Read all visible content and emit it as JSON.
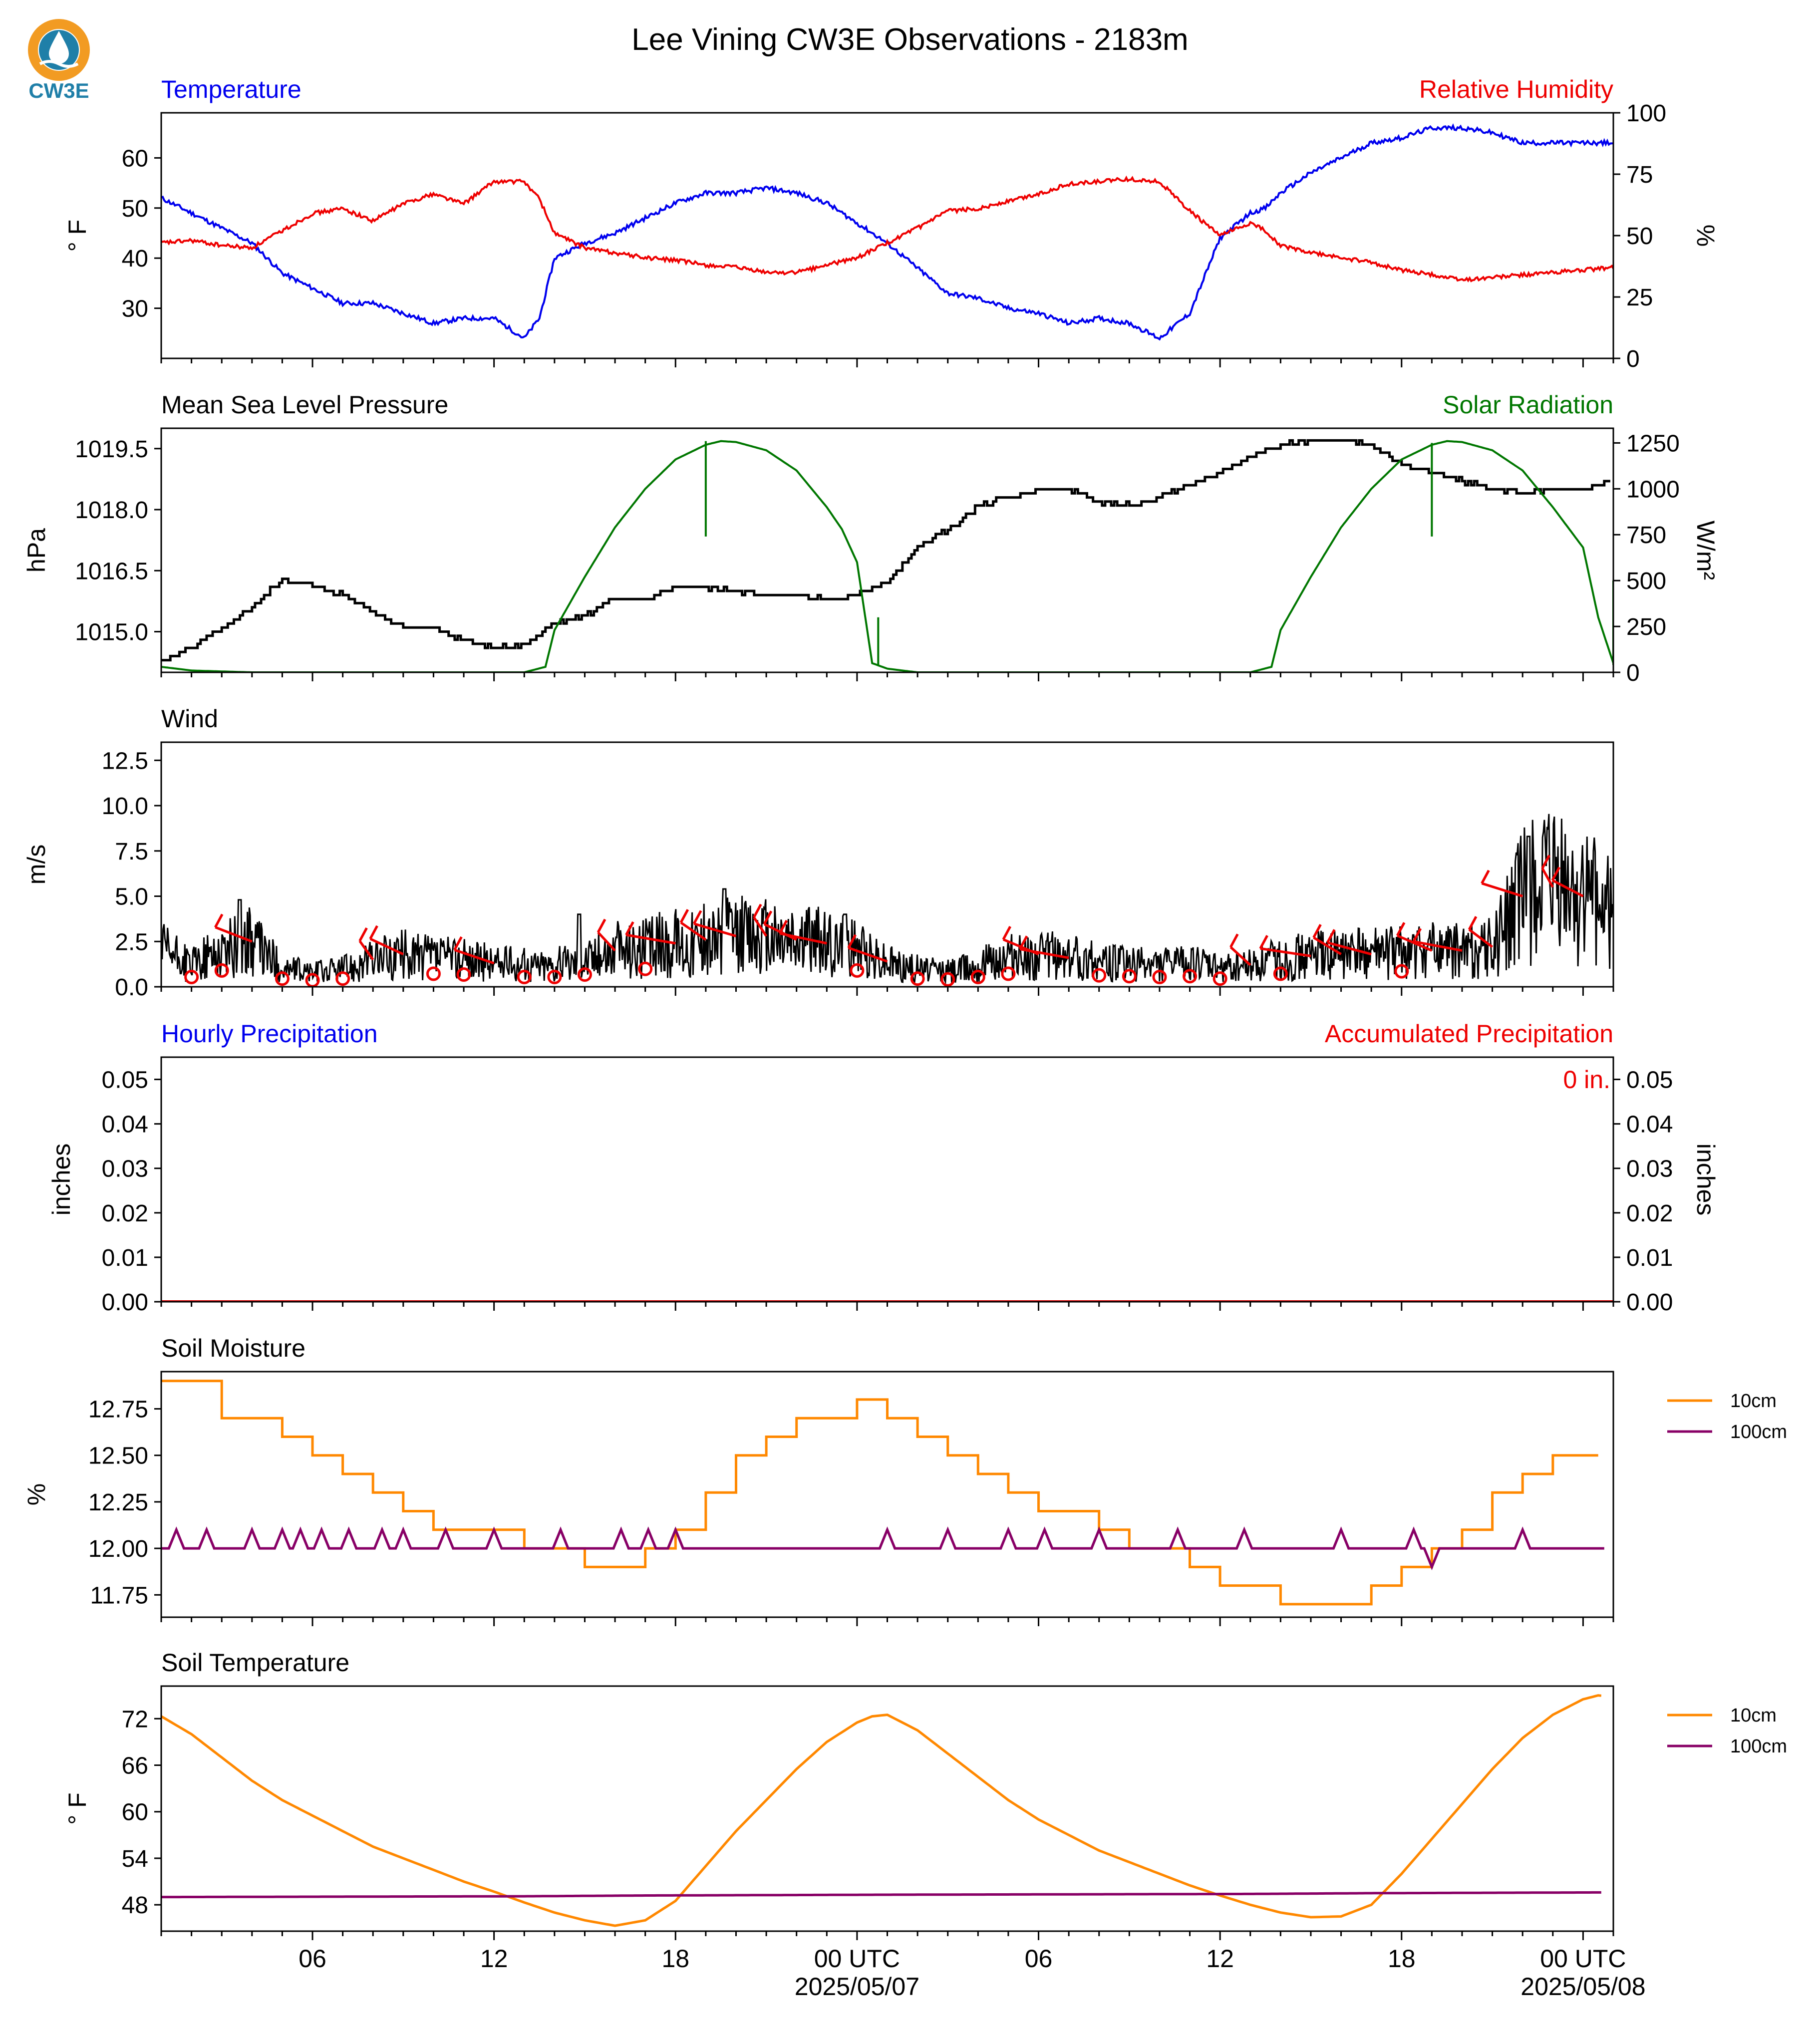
{
  "title": "Lee Vining CW3E Observations - 2183m",
  "logo": {
    "text": "CW3E",
    "colors": {
      "drop": "#1f7fa8",
      "ring": "#f29b22"
    }
  },
  "x_axis": {
    "tick_labels": [
      "06",
      "12",
      "18",
      "00 UTC",
      "06",
      "12",
      "18",
      "00 UTC"
    ],
    "tick_hours": [
      6,
      12,
      18,
      24,
      30,
      36,
      42,
      48
    ],
    "date_labels": [
      {
        "hour": 24,
        "text": "2025/05/07"
      },
      {
        "hour": 48,
        "text": "2025/05/08"
      }
    ],
    "range_hours": [
      1,
      49
    ]
  },
  "chart_data": [
    {
      "type": "line",
      "title_left": "Temperature",
      "title_right": "Relative Humidity",
      "ylabel_left": "° F",
      "ylabel_right": "%",
      "ylim_left": [
        20,
        69
      ],
      "ylim_right": [
        0,
        100
      ],
      "yticks_left": [
        30,
        40,
        50,
        60
      ],
      "yticks_right": [
        0,
        25,
        50,
        75,
        100
      ],
      "x": [
        1,
        2,
        3,
        4,
        5,
        6,
        7,
        8,
        9,
        10,
        11,
        12,
        13,
        13.5,
        14,
        15,
        16,
        17,
        18,
        19,
        20,
        21,
        22,
        23,
        24,
        25,
        26,
        27,
        28,
        29,
        30,
        31,
        32,
        33,
        34,
        35,
        36,
        37,
        37.5,
        38,
        39,
        40,
        41,
        42,
        43,
        44,
        45,
        46,
        47,
        48,
        49
      ],
      "series": [
        {
          "name": "Temperature",
          "axis": "left",
          "color": "#0000ee",
          "values": [
            52,
            49,
            46,
            43,
            37,
            34,
            31,
            31,
            29,
            27,
            28,
            28,
            24,
            28,
            40,
            43,
            45,
            48,
            51,
            53,
            53,
            54,
            53,
            51,
            47,
            43,
            38,
            33,
            32,
            30,
            29,
            27,
            28,
            27,
            24,
            29,
            44,
            49,
            50,
            53,
            57,
            60,
            63,
            64,
            66,
            66,
            65,
            63,
            63,
            63,
            63
          ]
        },
        {
          "name": "Relative Humidity",
          "axis": "right",
          "color": "#ee0000",
          "values": [
            47,
            48,
            46,
            45,
            52,
            59,
            61,
            56,
            63,
            67,
            63,
            72,
            72,
            65,
            51,
            45,
            43,
            41,
            40,
            38,
            37,
            35,
            35,
            38,
            41,
            47,
            53,
            60,
            61,
            64,
            67,
            71,
            72,
            73,
            72,
            60,
            50,
            55,
            52,
            46,
            43,
            41,
            39,
            36,
            34,
            32,
            33,
            34,
            35,
            36,
            37
          ]
        }
      ]
    },
    {
      "type": "line",
      "title_left": "Mean Sea Level Pressure",
      "title_right": "Solar Radiation",
      "ylabel_left": "hPa",
      "ylabel_right": "W/m²",
      "ylim_left": [
        1014.0,
        1020.0
      ],
      "ylim_right": [
        0,
        1330
      ],
      "yticks_left": [
        1015.0,
        1016.5,
        1018.0,
        1019.5
      ],
      "yticks_left_labels": [
        "1015.0",
        "1016.5",
        "1018.0",
        "1019.5"
      ],
      "yticks_right": [
        0,
        250,
        500,
        750,
        1000,
        1250
      ],
      "series": [
        {
          "name": "Mean Sea Level Pressure",
          "axis": "left",
          "color": "#000000",
          "step": true,
          "x": [
            1,
            2,
            3,
            4,
            5,
            6,
            7,
            8,
            9,
            10,
            11,
            12,
            13,
            14,
            15,
            16,
            17,
            18,
            19,
            20,
            21,
            22,
            23,
            24,
            25,
            26,
            27,
            28,
            29,
            30,
            31,
            32,
            33,
            34,
            35,
            36,
            37,
            38,
            39,
            40,
            41,
            42,
            43,
            44,
            45,
            46,
            47,
            48,
            49
          ],
          "values": [
            1014.3,
            1014.6,
            1015.1,
            1015.6,
            1016.3,
            1016.1,
            1015.9,
            1015.5,
            1015.1,
            1015.1,
            1014.8,
            1014.6,
            1014.7,
            1015.2,
            1015.4,
            1015.8,
            1015.8,
            1016.1,
            1016.1,
            1016.0,
            1015.9,
            1015.9,
            1015.8,
            1015.9,
            1016.2,
            1017.1,
            1017.5,
            1018.1,
            1018.3,
            1018.5,
            1018.5,
            1018.2,
            1018.1,
            1018.3,
            1018.6,
            1018.9,
            1019.3,
            1019.6,
            1019.7,
            1019.7,
            1019.6,
            1019.1,
            1018.9,
            1018.7,
            1018.5,
            1018.4,
            1018.5,
            1018.5,
            1018.7
          ]
        },
        {
          "name": "Solar Radiation",
          "axis": "right",
          "color": "#007700",
          "x": [
            1,
            2,
            4,
            8,
            12,
            13,
            13.7,
            14,
            15,
            16,
            17,
            18,
            19,
            19.5,
            20,
            21,
            22,
            23,
            23.5,
            24,
            24.5,
            25,
            26,
            30,
            36,
            37,
            37.7,
            38,
            39,
            40,
            41,
            42,
            43,
            43.5,
            44,
            45,
            46,
            47,
            48,
            48.5,
            49
          ],
          "values": [
            30,
            10,
            0,
            0,
            0,
            0,
            30,
            230,
            520,
            790,
            1000,
            1160,
            1240,
            1260,
            1255,
            1210,
            1100,
            900,
            780,
            600,
            50,
            20,
            0,
            0,
            0,
            0,
            30,
            230,
            520,
            790,
            1000,
            1160,
            1240,
            1260,
            1255,
            1210,
            1100,
            900,
            680,
            300,
            50
          ]
        }
      ]
    },
    {
      "type": "line",
      "title_left": "Wind",
      "ylabel_left": "m/s",
      "ylim_left": [
        0,
        13.5
      ],
      "yticks_left": [
        0.0,
        2.5,
        5.0,
        7.5,
        10.0,
        12.5
      ],
      "yticks_left_labels": [
        "0.0",
        "2.5",
        "5.0",
        "7.5",
        "10.0",
        "12.5"
      ],
      "series": [
        {
          "name": "Wind Speed",
          "color": "#000000",
          "x": [
            1,
            2,
            3,
            4,
            5,
            6,
            7,
            8,
            9,
            10,
            11,
            12,
            13,
            14,
            15,
            16,
            17,
            18,
            19,
            20,
            21,
            22,
            23,
            24,
            25,
            26,
            27,
            28,
            29,
            30,
            31,
            32,
            33,
            34,
            35,
            36,
            37,
            38,
            39,
            40,
            41,
            42,
            43,
            44,
            45,
            46,
            47,
            48,
            49
          ],
          "values": [
            2.0,
            1.2,
            2.0,
            2.5,
            1.0,
            0.8,
            1.0,
            1.5,
            1.8,
            1.6,
            1.5,
            1.3,
            1.2,
            1.2,
            1.5,
            2.0,
            2.2,
            2.4,
            2.6,
            2.8,
            2.8,
            2.6,
            2.4,
            2.0,
            1.4,
            1.0,
            0.9,
            1.2,
            1.6,
            1.8,
            1.6,
            1.4,
            1.3,
            1.2,
            1.3,
            1.0,
            1.2,
            1.6,
            1.7,
            1.8,
            1.8,
            1.9,
            2.0,
            2.0,
            2.2,
            5.0,
            5.5,
            5.0,
            4.0
          ],
          "gust_peaks": [
            {
              "x": 3.6,
              "v": 4.8
            },
            {
              "x": 14.8,
              "v": 4.0
            },
            {
              "x": 19.6,
              "v": 5.4
            },
            {
              "x": 23.6,
              "v": 4.0
            },
            {
              "x": 46.2,
              "v": 8.3
            }
          ]
        },
        {
          "name": "Wind Barbs",
          "color": "#ee0000",
          "calm_hours": [
            2,
            3,
            5,
            6,
            7,
            10,
            11,
            13,
            14,
            15,
            17,
            24,
            26,
            27,
            28,
            29,
            32,
            33,
            34,
            35,
            36,
            38,
            42
          ]
        }
      ]
    },
    {
      "type": "bar",
      "title_left": "Hourly Precipitation",
      "title_right": "Accumulated Precipitation",
      "ylabel_left": "inches",
      "ylabel_right": "inches",
      "ylim_left": [
        0,
        0.055
      ],
      "ylim_right": [
        0,
        0.055
      ],
      "yticks_left": [
        0.0,
        0.01,
        0.02,
        0.03,
        0.04,
        0.05
      ],
      "yticks_left_labels": [
        "0.00",
        "0.01",
        "0.02",
        "0.03",
        "0.04",
        "0.05"
      ],
      "accumulated_label": "0 in.",
      "series": [
        {
          "name": "Hourly Precipitation",
          "color": "#0000ee",
          "values": []
        },
        {
          "name": "Accumulated Precipitation",
          "color": "#ee0000",
          "values": [
            0
          ]
        }
      ]
    },
    {
      "type": "line",
      "title_left": "Soil Moisture",
      "ylabel_left": "%",
      "ylim_left": [
        11.63,
        12.95
      ],
      "yticks_left": [
        11.75,
        12.0,
        12.25,
        12.5,
        12.75
      ],
      "yticks_left_labels": [
        "11.75",
        "12.00",
        "12.25",
        "12.50",
        "12.75"
      ],
      "legend": {
        "placement": "right",
        "entries": [
          "10cm",
          "100cm"
        ]
      },
      "series": [
        {
          "name": "10cm",
          "color": "#ff8800",
          "step": true,
          "x": [
            1,
            2,
            3,
            4,
            5,
            6,
            7,
            8,
            9,
            10,
            11,
            12,
            13,
            14,
            15,
            16,
            17,
            18,
            19,
            20,
            21,
            22,
            23,
            24,
            25,
            26,
            27,
            28,
            29,
            30,
            31,
            32,
            33,
            34,
            35,
            36,
            37,
            38,
            39,
            40,
            41,
            42,
            43,
            44,
            45,
            46,
            47,
            48,
            49
          ],
          "values": [
            12.9,
            12.9,
            12.7,
            12.7,
            12.6,
            12.5,
            12.4,
            12.3,
            12.2,
            12.1,
            12.1,
            12.1,
            12.0,
            12.0,
            11.9,
            11.9,
            12.0,
            12.1,
            12.3,
            12.5,
            12.6,
            12.7,
            12.7,
            12.8,
            12.7,
            12.6,
            12.5,
            12.4,
            12.3,
            12.2,
            12.2,
            12.1,
            12.0,
            12.0,
            11.9,
            11.8,
            11.8,
            11.7,
            11.7,
            11.7,
            11.8,
            11.9,
            12.0,
            12.1,
            12.3,
            12.4,
            12.5,
            12.5,
            12.5
          ]
        },
        {
          "name": "100cm",
          "color": "#880066",
          "baseline": 12.0,
          "blip_hours": [
            1.5,
            2.5,
            4,
            5,
            5.6,
            6.3,
            7.2,
            8.3,
            9,
            10.4,
            12,
            14.2,
            16.2,
            17.1,
            18,
            25,
            27,
            29,
            30.2,
            32,
            34.6,
            36.8,
            40,
            42.4,
            43,
            46
          ]
        }
      ]
    },
    {
      "type": "line",
      "title_left": "Soil Temperature",
      "ylabel_left": "° F",
      "ylim_left": [
        44.6,
        76.2
      ],
      "yticks_left": [
        48,
        54,
        60,
        66,
        72
      ],
      "legend": {
        "placement": "right",
        "entries": [
          "10cm",
          "100cm"
        ]
      },
      "series": [
        {
          "name": "10cm",
          "color": "#ff8800",
          "x": [
            1,
            2,
            3,
            4,
            5,
            6,
            7,
            8,
            9,
            10,
            11,
            12,
            13,
            14,
            15,
            16,
            17,
            18,
            19,
            20,
            21,
            22,
            23,
            24,
            24.5,
            25,
            26,
            27,
            28,
            29,
            30,
            31,
            32,
            33,
            34,
            35,
            36,
            37,
            38,
            39,
            40,
            41,
            42,
            43,
            44,
            45,
            46,
            47,
            48,
            48.5,
            49
          ],
          "values": [
            72.3,
            70.0,
            67.0,
            64.0,
            61.5,
            59.5,
            57.5,
            55.5,
            54.0,
            52.5,
            51.0,
            49.7,
            48.3,
            47.0,
            46.0,
            45.3,
            46.0,
            48.5,
            53.0,
            57.5,
            61.5,
            65.5,
            69.0,
            71.5,
            72.3,
            72.5,
            70.5,
            67.5,
            64.5,
            61.5,
            59.0,
            57.0,
            55.0,
            53.5,
            52.0,
            50.5,
            49.2,
            48.0,
            47.0,
            46.4,
            46.5,
            48.0,
            52.0,
            56.5,
            61.0,
            65.5,
            69.5,
            72.5,
            74.5,
            75.0,
            74.8
          ]
        },
        {
          "name": "100cm",
          "color": "#880066",
          "x": [
            1,
            13,
            17,
            25,
            37,
            41,
            49
          ],
          "values": [
            49.0,
            49.1,
            49.2,
            49.3,
            49.4,
            49.5,
            49.6
          ]
        }
      ]
    }
  ]
}
